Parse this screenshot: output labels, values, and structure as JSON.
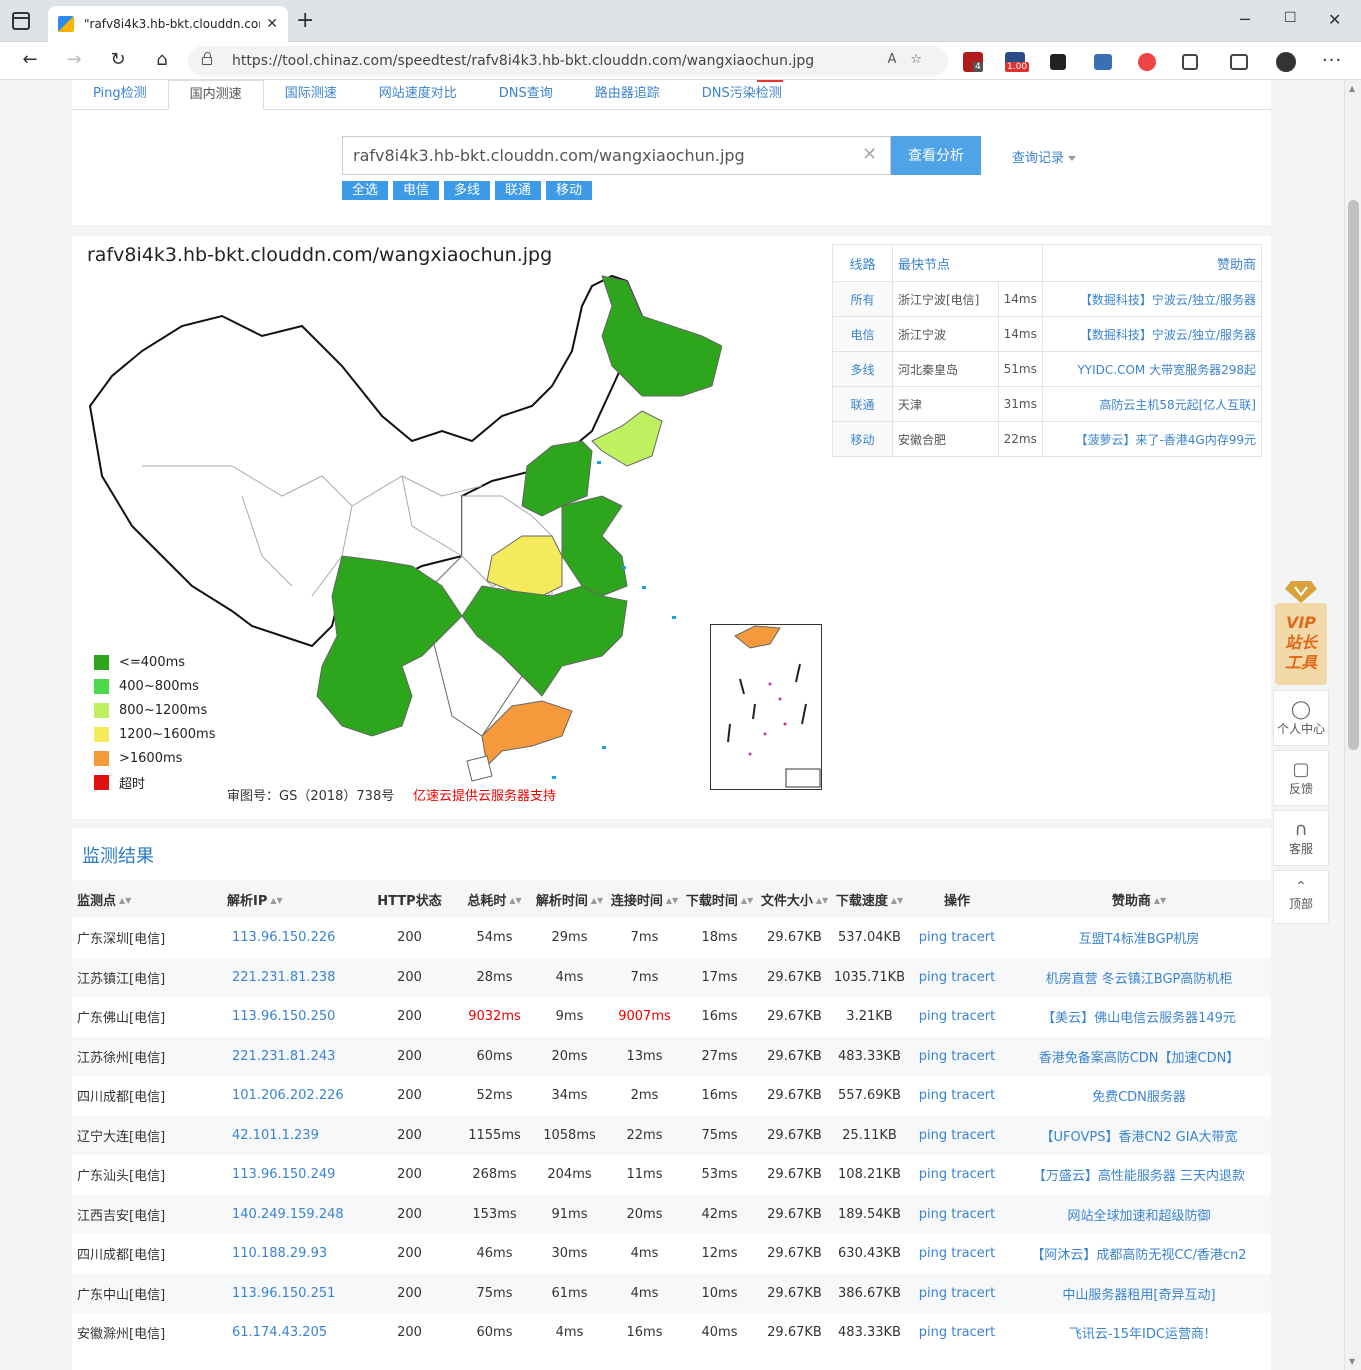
{
  "browser": {
    "tab_title": "\"rafv8i4k3.hb-bkt.clouddn.com/w",
    "url": "https://tool.chinaz.com/speedtest/rafv8i4k3.hb-bkt.clouddn.com/wangxiaochun.jpg",
    "ext_badges": [
      "4",
      "1.00"
    ]
  },
  "nav": {
    "tabs": [
      "Ping检测",
      "国内测速",
      "国际测速",
      "网站速度对比",
      "DNS查询",
      "路由器追踪",
      "DNS污染检测"
    ],
    "active_tab": "国内测速"
  },
  "search": {
    "value": "rafv8i4k3.hb-bkt.clouddn.com/wangxiaochun.jpg",
    "button": "查看分析",
    "history": "查询记录",
    "filters": [
      "全选",
      "电信",
      "多线",
      "联通",
      "移动"
    ]
  },
  "map": {
    "title": "rafv8i4k3.hb-bkt.clouddn.com/wangxiaochun.jpg",
    "legend": [
      {
        "label": "<=400ms",
        "color": "#2da51c"
      },
      {
        "label": "400~800ms",
        "color": "#4cd94c"
      },
      {
        "label": "800~1200ms",
        "color": "#bff060"
      },
      {
        "label": "1200~1600ms",
        "color": "#f3ea5c"
      },
      {
        "label": ">1600ms",
        "color": "#f59a3a"
      },
      {
        "label": "超时",
        "color": "#e01010"
      }
    ],
    "approval": "审图号：GS（2018）738号",
    "sponsor": "亿速云提供云服务器支持"
  },
  "fastest": {
    "headers": [
      "线路",
      "最快节点",
      "赞助商"
    ],
    "rows": [
      {
        "line": "所有",
        "node": "浙江宁波[电信]",
        "time": "14ms",
        "sponsor": "【数掘科技】宁波云/独立/服务器"
      },
      {
        "line": "电信",
        "node": "浙江宁波",
        "time": "14ms",
        "sponsor": "【数掘科技】宁波云/独立/服务器"
      },
      {
        "line": "多线",
        "node": "河北秦皇岛",
        "time": "51ms",
        "sponsor": "YYIDC.COM 大带宽服务器298起"
      },
      {
        "line": "联通",
        "node": "天津",
        "time": "31ms",
        "sponsor": "高防云主机58元起[亿人互联]"
      },
      {
        "line": "移动",
        "node": "安徽合肥",
        "time": "22ms",
        "sponsor": "【菠萝云】来了-香港4G内存99元"
      }
    ]
  },
  "results": {
    "title": "监测结果",
    "headers": [
      "监测点",
      "解析IP",
      "HTTP状态",
      "总耗时",
      "解析时间",
      "连接时间",
      "下载时间",
      "文件大小",
      "下载速度",
      "操作",
      "赞助商"
    ],
    "rows": [
      {
        "site": "广东深圳[电信]",
        "ip": "113.96.150.226",
        "status": "200",
        "total": "54ms",
        "dns": "29ms",
        "conn": "7ms",
        "dl": "18ms",
        "size": "29.67KB",
        "speed": "537.04KB",
        "op": "ping tracert",
        "sponsor": "互盟T4标准BGP机房"
      },
      {
        "site": "江苏镇江[电信]",
        "ip": "221.231.81.238",
        "status": "200",
        "total": "28ms",
        "dns": "4ms",
        "conn": "7ms",
        "dl": "17ms",
        "size": "29.67KB",
        "speed": "1035.71KB",
        "op": "ping tracert",
        "sponsor": "机房直营 冬云镇江BGP高防机柜"
      },
      {
        "site": "广东佛山[电信]",
        "ip": "113.96.150.250",
        "status": "200",
        "total": "9032ms",
        "dns": "9ms",
        "conn": "9007ms",
        "dl": "16ms",
        "size": "29.67KB",
        "speed": "3.21KB",
        "op": "ping tracert",
        "sponsor": "【美云】佛山电信云服务器149元"
      },
      {
        "site": "江苏徐州[电信]",
        "ip": "221.231.81.243",
        "status": "200",
        "total": "60ms",
        "dns": "20ms",
        "conn": "13ms",
        "dl": "27ms",
        "size": "29.67KB",
        "speed": "483.33KB",
        "op": "ping tracert",
        "sponsor": "香港免备案高防CDN【加速CDN】"
      },
      {
        "site": "四川成都[电信]",
        "ip": "101.206.202.226",
        "status": "200",
        "total": "52ms",
        "dns": "34ms",
        "conn": "2ms",
        "dl": "16ms",
        "size": "29.67KB",
        "speed": "557.69KB",
        "op": "ping tracert",
        "sponsor": "免费CDN服务器"
      },
      {
        "site": "辽宁大连[电信]",
        "ip": "42.101.1.239",
        "status": "200",
        "total": "1155ms",
        "dns": "1058ms",
        "conn": "22ms",
        "dl": "75ms",
        "size": "29.67KB",
        "speed": "25.11KB",
        "op": "ping tracert",
        "sponsor": "【UFOVPS】香港CN2 GIA大带宽"
      },
      {
        "site": "广东汕头[电信]",
        "ip": "113.96.150.249",
        "status": "200",
        "total": "268ms",
        "dns": "204ms",
        "conn": "11ms",
        "dl": "53ms",
        "size": "29.67KB",
        "speed": "108.21KB",
        "op": "ping tracert",
        "sponsor": "【万盛云】高性能服务器 三天内退款"
      },
      {
        "site": "江西吉安[电信]",
        "ip": "140.249.159.248",
        "status": "200",
        "total": "153ms",
        "dns": "91ms",
        "conn": "20ms",
        "dl": "42ms",
        "size": "29.67KB",
        "speed": "189.54KB",
        "op": "ping tracert",
        "sponsor": "网站全球加速和超级防御"
      },
      {
        "site": "四川成都[电信]",
        "ip": "110.188.29.93",
        "status": "200",
        "total": "46ms",
        "dns": "30ms",
        "conn": "4ms",
        "dl": "12ms",
        "size": "29.67KB",
        "speed": "630.43KB",
        "op": "ping tracert",
        "sponsor": "【阿沐云】成都高防无视CC/香港cn2"
      },
      {
        "site": "广东中山[电信]",
        "ip": "113.96.150.251",
        "status": "200",
        "total": "75ms",
        "dns": "61ms",
        "conn": "4ms",
        "dl": "10ms",
        "size": "29.67KB",
        "speed": "386.67KB",
        "op": "ping tracert",
        "sponsor": "中山服务器租用[奇异互动]"
      },
      {
        "site": "安徽滁州[电信]",
        "ip": "61.174.43.205",
        "status": "200",
        "total": "60ms",
        "dns": "4ms",
        "conn": "16ms",
        "dl": "40ms",
        "size": "29.67KB",
        "speed": "483.33KB",
        "op": "ping tracert",
        "sponsor": "飞讯云-15年IDC运营商!"
      }
    ]
  },
  "side": {
    "vip_line1": "VIP",
    "vip_line2": "站长",
    "vip_line3": "工具",
    "items": [
      "个人中心",
      "反馈",
      "客服",
      "顶部"
    ]
  }
}
